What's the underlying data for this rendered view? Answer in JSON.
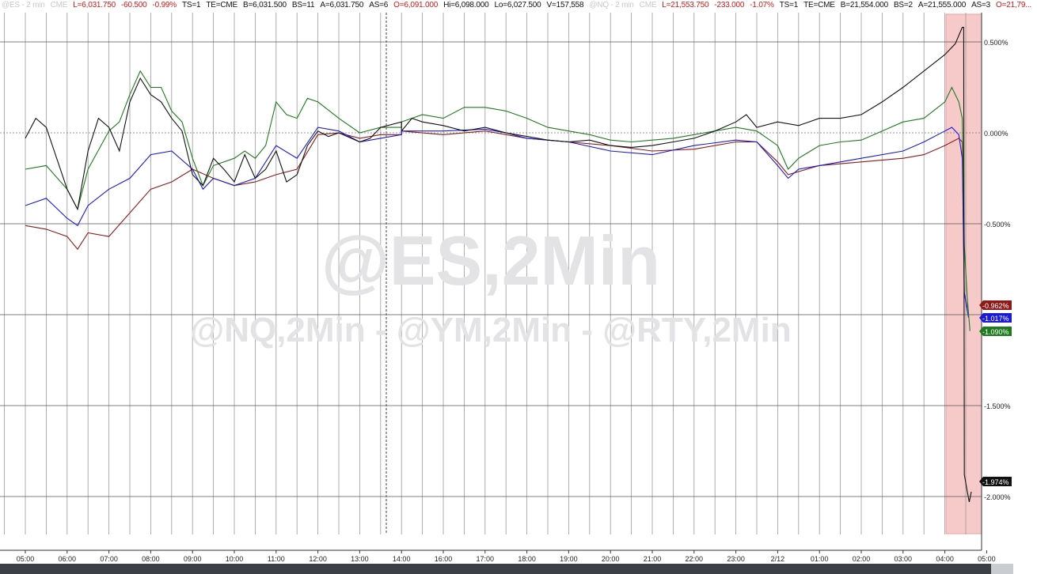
{
  "header": {
    "es": [
      {
        "t": "@ES - 2 min",
        "c": "g"
      },
      {
        "t": "CME",
        "c": "g"
      },
      {
        "t": "L=6,031.750",
        "c": "r"
      },
      {
        "t": "-60.500",
        "c": "r"
      },
      {
        "t": "-0.99%",
        "c": "r"
      },
      {
        "t": "TS=1",
        "c": "k"
      },
      {
        "t": "TE=CME",
        "c": "k"
      },
      {
        "t": "B=6,031.500",
        "c": "k"
      },
      {
        "t": "BS=11",
        "c": "k"
      },
      {
        "t": "A=6,031.750",
        "c": "k"
      },
      {
        "t": "AS=6",
        "c": "k"
      },
      {
        "t": "O=6,091.000",
        "c": "r"
      },
      {
        "t": "Hi=6,098.000",
        "c": "k"
      },
      {
        "t": "Lo=6,027.500",
        "c": "k"
      },
      {
        "t": "V=157,558",
        "c": "k"
      }
    ],
    "nq": [
      {
        "t": "@NQ - 2 min",
        "c": "g"
      },
      {
        "t": "CME",
        "c": "g"
      },
      {
        "t": "L=21,553.750",
        "c": "r"
      },
      {
        "t": "-233.000",
        "c": "r"
      },
      {
        "t": "-1.07%",
        "c": "r"
      },
      {
        "t": "TS=1",
        "c": "k"
      },
      {
        "t": "TE=CME",
        "c": "k"
      },
      {
        "t": "B=21,554.000",
        "c": "k"
      },
      {
        "t": "BS=2",
        "c": "k"
      },
      {
        "t": "A=21,555.000",
        "c": "k"
      },
      {
        "t": "AS=3",
        "c": "k"
      },
      {
        "t": "O=21,79...",
        "c": "r"
      }
    ]
  },
  "watermark": {
    "main": "@ES,2Min",
    "sub": "@NQ,2Min - @YM,2Min - @RTY,2Min"
  },
  "chart_data": {
    "type": "line",
    "x_ticks": [
      "05:00",
      "06:00",
      "07:00",
      "08:00",
      "09:00",
      "10:00",
      "11:00",
      "12:00",
      "13:00",
      "14:00",
      "16:00",
      "17:00",
      "18:00",
      "19:00",
      "20:00",
      "21:00",
      "22:00",
      "23:00",
      "2/12",
      "01:00",
      "02:00",
      "03:00",
      "04:00",
      "05:00"
    ],
    "y_ticks": [
      {
        "v": 0.5,
        "label": "0.500%"
      },
      {
        "v": 0,
        "label": "0.000%"
      },
      {
        "v": -0.5,
        "label": "-0.500%"
      },
      {
        "v": -1.5,
        "label": "-1.500%"
      },
      {
        "v": -2,
        "label": "-2.000%"
      }
    ],
    "ylim": [
      -2.2,
      0.72
    ],
    "grid": true,
    "last_values": [
      {
        "label": "-0.962%",
        "color": "#8b1a1a"
      },
      {
        "label": "-1.017%",
        "color": "#1a1ad0"
      },
      {
        "label": "-1.090%",
        "color": "#1f7a1f"
      },
      {
        "label": "-1.974%",
        "color": "#111111"
      }
    ],
    "highlight": {
      "from": "05:00",
      "to": "05:45",
      "color": "#f7caca"
    },
    "series": [
      {
        "color": "#8b1a1a",
        "points": [
          [
            "05:00",
            -0.51
          ],
          [
            "05:30",
            -0.53
          ],
          [
            "06:00",
            -0.57
          ],
          [
            "06:15",
            -0.64
          ],
          [
            "06:30",
            -0.55
          ],
          [
            "07:00",
            -0.57
          ],
          [
            "07:30",
            -0.44
          ],
          [
            "08:00",
            -0.31
          ],
          [
            "08:30",
            -0.27
          ],
          [
            "09:00",
            -0.2
          ],
          [
            "09:30",
            -0.25
          ],
          [
            "10:00",
            -0.29
          ],
          [
            "10:30",
            -0.27
          ],
          [
            "11:00",
            -0.23
          ],
          [
            "11:30",
            -0.2
          ],
          [
            "12:00",
            -0.01
          ],
          [
            "12:30",
            0
          ],
          [
            "13:00",
            -0.03
          ],
          [
            "13:30",
            -0.01
          ],
          [
            "14:00",
            -0.01
          ],
          [
            "16:00",
            0.01
          ],
          [
            "17:00",
            -0.01
          ],
          [
            "18:00",
            0.01
          ],
          [
            "19:00",
            -0.03
          ],
          [
            "20:00",
            -0.05
          ],
          [
            "21:00",
            -0.07
          ],
          [
            "22:00",
            -0.1
          ],
          [
            "23:00",
            -0.09
          ],
          [
            "00:00",
            -0.05
          ],
          [
            "00:30",
            -0.05
          ],
          [
            "01:00",
            -0.16
          ],
          [
            "01:15",
            -0.23
          ],
          [
            "02:00",
            -0.18
          ],
          [
            "03:00",
            -0.16
          ],
          [
            "04:00",
            -0.14
          ],
          [
            "04:30",
            -0.12
          ],
          [
            "05:00",
            -0.07
          ],
          [
            "05:20",
            -0.03
          ],
          [
            "05:25",
            -0.05
          ],
          [
            "05:28",
            -0.88
          ],
          [
            "05:32",
            -0.962
          ]
        ]
      },
      {
        "color": "#1a1ad0",
        "points": [
          [
            "05:00",
            -0.4
          ],
          [
            "05:30",
            -0.36
          ],
          [
            "06:00",
            -0.47
          ],
          [
            "06:15",
            -0.51
          ],
          [
            "06:30",
            -0.4
          ],
          [
            "07:00",
            -0.31
          ],
          [
            "07:30",
            -0.25
          ],
          [
            "08:00",
            -0.12
          ],
          [
            "08:30",
            -0.1
          ],
          [
            "09:00",
            -0.2
          ],
          [
            "09:15",
            -0.31
          ],
          [
            "09:30",
            -0.25
          ],
          [
            "10:00",
            -0.29
          ],
          [
            "10:30",
            -0.25
          ],
          [
            "11:00",
            -0.07
          ],
          [
            "11:30",
            -0.14
          ],
          [
            "12:00",
            0.03
          ],
          [
            "12:30",
            0.01
          ],
          [
            "13:00",
            -0.05
          ],
          [
            "13:30",
            -0.03
          ],
          [
            "14:00",
            -0.01
          ],
          [
            "16:00",
            0.01
          ],
          [
            "17:00",
            0.01
          ],
          [
            "18:00",
            0.02
          ],
          [
            "18:30",
            0
          ],
          [
            "19:00",
            -0.03
          ],
          [
            "20:00",
            -0.05
          ],
          [
            "21:00",
            -0.1
          ],
          [
            "22:00",
            -0.12
          ],
          [
            "23:00",
            -0.07
          ],
          [
            "00:00",
            -0.04
          ],
          [
            "00:30",
            -0.05
          ],
          [
            "01:00",
            -0.18
          ],
          [
            "01:15",
            -0.25
          ],
          [
            "01:30",
            -0.2
          ],
          [
            "02:00",
            -0.18
          ],
          [
            "03:00",
            -0.14
          ],
          [
            "04:00",
            -0.1
          ],
          [
            "04:30",
            -0.05
          ],
          [
            "05:00",
            0.01
          ],
          [
            "05:10",
            0.03
          ],
          [
            "05:20",
            -0.01
          ],
          [
            "05:25",
            -0.14
          ],
          [
            "05:28",
            -0.88
          ],
          [
            "05:34",
            -1.017
          ]
        ]
      },
      {
        "color": "#1f7a1f",
        "points": [
          [
            "05:00",
            -0.2
          ],
          [
            "05:30",
            -0.18
          ],
          [
            "06:00",
            -0.31
          ],
          [
            "06:15",
            -0.42
          ],
          [
            "06:30",
            -0.2
          ],
          [
            "07:00",
            0.01
          ],
          [
            "07:15",
            0.06
          ],
          [
            "07:30",
            0.21
          ],
          [
            "07:45",
            0.34
          ],
          [
            "08:00",
            0.25
          ],
          [
            "08:15",
            0.25
          ],
          [
            "08:30",
            0.12
          ],
          [
            "08:45",
            0.06
          ],
          [
            "09:00",
            -0.14
          ],
          [
            "09:15",
            -0.29
          ],
          [
            "09:30",
            -0.18
          ],
          [
            "10:00",
            -0.14
          ],
          [
            "10:15",
            -0.1
          ],
          [
            "10:30",
            -0.14
          ],
          [
            "10:45",
            -0.07
          ],
          [
            "11:00",
            0.17
          ],
          [
            "11:15",
            0.1
          ],
          [
            "11:30",
            0.08
          ],
          [
            "11:45",
            0.19
          ],
          [
            "12:00",
            0.17
          ],
          [
            "12:30",
            0.08
          ],
          [
            "13:00",
            0
          ],
          [
            "13:30",
            0.03
          ],
          [
            "14:00",
            0.03
          ],
          [
            "16:00",
            0.06
          ],
          [
            "16:30",
            0.1
          ],
          [
            "17:00",
            0.08
          ],
          [
            "17:30",
            0.14
          ],
          [
            "18:00",
            0.14
          ],
          [
            "18:30",
            0.12
          ],
          [
            "19:00",
            0.08
          ],
          [
            "19:30",
            0.03
          ],
          [
            "20:00",
            0.01
          ],
          [
            "20:30",
            -0.01
          ],
          [
            "21:00",
            -0.04
          ],
          [
            "21:30",
            -0.05
          ],
          [
            "22:00",
            -0.04
          ],
          [
            "22:30",
            -0.03
          ],
          [
            "23:00",
            -0.01
          ],
          [
            "23:30",
            0.01
          ],
          [
            "00:00",
            0.03
          ],
          [
            "00:30",
            0.01
          ],
          [
            "01:00",
            -0.07
          ],
          [
            "01:15",
            -0.2
          ],
          [
            "01:30",
            -0.14
          ],
          [
            "02:00",
            -0.07
          ],
          [
            "02:30",
            -0.05
          ],
          [
            "03:00",
            -0.04
          ],
          [
            "03:30",
            0.01
          ],
          [
            "04:00",
            0.06
          ],
          [
            "04:30",
            0.08
          ],
          [
            "05:00",
            0.17
          ],
          [
            "05:10",
            0.25
          ],
          [
            "05:20",
            0.17
          ],
          [
            "05:25",
            0.08
          ],
          [
            "05:28",
            -0.62
          ],
          [
            "05:32",
            -0.9
          ],
          [
            "05:36",
            -1.09
          ]
        ]
      },
      {
        "color": "#111111",
        "points": [
          [
            "05:00",
            -0.03
          ],
          [
            "05:15",
            0.08
          ],
          [
            "05:30",
            0.03
          ],
          [
            "06:00",
            -0.31
          ],
          [
            "06:15",
            -0.42
          ],
          [
            "06:30",
            -0.1
          ],
          [
            "06:45",
            0.08
          ],
          [
            "07:00",
            0.03
          ],
          [
            "07:15",
            -0.1
          ],
          [
            "07:30",
            0.17
          ],
          [
            "07:45",
            0.3
          ],
          [
            "08:00",
            0.21
          ],
          [
            "08:15",
            0.17
          ],
          [
            "08:30",
            0.08
          ],
          [
            "08:45",
            0.01
          ],
          [
            "09:00",
            -0.23
          ],
          [
            "09:15",
            -0.29
          ],
          [
            "09:30",
            -0.14
          ],
          [
            "09:45",
            -0.2
          ],
          [
            "10:00",
            -0.27
          ],
          [
            "10:15",
            -0.12
          ],
          [
            "10:30",
            -0.25
          ],
          [
            "10:45",
            -0.2
          ],
          [
            "11:00",
            -0.1
          ],
          [
            "11:15",
            -0.27
          ],
          [
            "11:30",
            -0.23
          ],
          [
            "11:45",
            -0.07
          ],
          [
            "12:00",
            0.01
          ],
          [
            "12:15",
            -0.02
          ],
          [
            "12:30",
            0
          ],
          [
            "13:00",
            -0.05
          ],
          [
            "13:15",
            -0.03
          ],
          [
            "13:30",
            0.03
          ],
          [
            "14:00",
            0.06
          ],
          [
            "16:00",
            0.01
          ],
          [
            "16:15",
            0.08
          ],
          [
            "16:30",
            0.06
          ],
          [
            "17:00",
            0.04
          ],
          [
            "17:30",
            0.01
          ],
          [
            "18:00",
            0.03
          ],
          [
            "18:30",
            0
          ],
          [
            "19:00",
            -0.02
          ],
          [
            "19:30",
            -0.04
          ],
          [
            "20:00",
            -0.05
          ],
          [
            "20:30",
            -0.04
          ],
          [
            "21:00",
            -0.07
          ],
          [
            "21:30",
            -0.08
          ],
          [
            "22:00",
            -0.07
          ],
          [
            "22:30",
            -0.05
          ],
          [
            "23:00",
            -0.03
          ],
          [
            "23:30",
            0.01
          ],
          [
            "00:00",
            0.06
          ],
          [
            "00:15",
            0.1
          ],
          [
            "00:30",
            0.03
          ],
          [
            "01:00",
            0.06
          ],
          [
            "01:30",
            0.04
          ],
          [
            "02:00",
            0.08
          ],
          [
            "02:30",
            0.08
          ],
          [
            "03:00",
            0.1
          ],
          [
            "03:30",
            0.17
          ],
          [
            "04:00",
            0.25
          ],
          [
            "04:30",
            0.34
          ],
          [
            "05:00",
            0.43
          ],
          [
            "05:15",
            0.49
          ],
          [
            "05:25",
            0.58
          ],
          [
            "05:27",
            0.58
          ],
          [
            "05:28",
            -1.88
          ],
          [
            "05:32",
            -1.97
          ],
          [
            "05:35",
            -2.03
          ],
          [
            "05:38",
            -1.974
          ]
        ]
      }
    ]
  }
}
